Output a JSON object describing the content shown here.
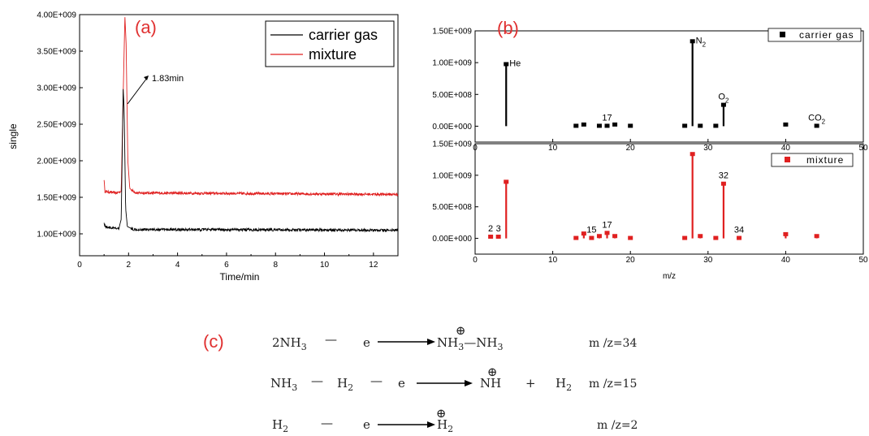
{
  "chart_data": [
    {
      "type": "line",
      "panel_label": "(a)",
      "xlabel": "Time/min",
      "ylabel": "single",
      "xlim": [
        0,
        13
      ],
      "ylim": [
        700000000,
        4000000000
      ],
      "x_ticks": [
        "0",
        "2",
        "4",
        "6",
        "8",
        "10",
        "12"
      ],
      "y_ticks": [
        "1.00E+009",
        "1.50E+009",
        "2.00E+009",
        "2.50E+009",
        "3.00E+009",
        "3.50E+009",
        "4.00E+009"
      ],
      "legend": "top-right",
      "series": [
        {
          "name": "carrier gas",
          "color": "#000000",
          "baseline": 1050000000,
          "points": [
            [
              1.0,
              1150000000.0
            ],
            [
              1.05,
              1100000000.0
            ],
            [
              1.3,
              1080000000.0
            ],
            [
              1.6,
              1070000000.0
            ],
            [
              1.7,
              1200000000.0
            ],
            [
              1.78,
              2980000000.0
            ],
            [
              1.82,
              2700000000.0
            ],
            [
              1.88,
              1350000000.0
            ],
            [
              1.95,
              1100000000.0
            ],
            [
              2.2,
              1060000000.0
            ],
            [
              13.0,
              1050000000.0
            ]
          ]
        },
        {
          "name": "mixture",
          "color": "#e02020",
          "baseline": 1540000000,
          "points": [
            [
              1.0,
              1750000000.0
            ],
            [
              1.03,
              1580000000.0
            ],
            [
              1.5,
              1560000000.0
            ],
            [
              1.7,
              1580000000.0
            ],
            [
              1.78,
              2900000000.0
            ],
            [
              1.85,
              3980000000.0
            ],
            [
              1.9,
              3600000000.0
            ],
            [
              1.97,
              2000000000.0
            ],
            [
              2.05,
              1620000000.0
            ],
            [
              2.3,
              1560000000.0
            ],
            [
              13.0,
              1540000000.0
            ]
          ]
        }
      ],
      "annotation": {
        "text": "1.83min",
        "x": 1.83
      }
    },
    {
      "type": "bar",
      "panel_label": "(b)",
      "xlim": [
        0,
        50
      ],
      "ylim": [
        -250000000,
        1500000000
      ],
      "x_ticks": [
        "0",
        "10",
        "20",
        "30",
        "40",
        "50"
      ],
      "y_ticks": [
        "0.00E+000",
        "5.00E+008",
        "1.00E+009",
        "1.50E+009"
      ],
      "legend": "top-right",
      "series": [
        {
          "name": "carrier gas",
          "color": "#000000",
          "x": [
            4,
            13,
            14,
            16,
            17,
            18,
            20,
            27,
            28,
            29,
            31,
            32,
            40,
            44
          ],
          "values": [
            970000000,
            0,
            20000000,
            0,
            0,
            20000000,
            0,
            0,
            1330000000,
            0,
            0,
            330000000,
            20000000,
            0
          ]
        }
      ],
      "labels": [
        {
          "text": "He",
          "x": 4
        },
        {
          "text": "17",
          "x": 17
        },
        {
          "text": "N",
          "sub": "2",
          "x": 28
        },
        {
          "text": "O",
          "sub": "2",
          "x": 32
        },
        {
          "text": "CO",
          "sub": "2",
          "x": 44
        }
      ]
    },
    {
      "type": "bar",
      "xlabel": "m/z",
      "xlim": [
        0,
        50
      ],
      "ylim": [
        -250000000,
        1500000000
      ],
      "x_ticks": [
        "0",
        "10",
        "20",
        "30",
        "40",
        "50"
      ],
      "y_ticks": [
        "0.00E+000",
        "5.00E+008",
        "1.00E+009",
        "1.50E+009"
      ],
      "legend": "top-right",
      "series": [
        {
          "name": "mixture",
          "color": "#e02020",
          "x": [
            2,
            3,
            4,
            13,
            14,
            15,
            16,
            17,
            18,
            20,
            27,
            28,
            29,
            31,
            32,
            34,
            40,
            44
          ],
          "values": [
            20000000,
            20000000,
            890000000,
            0,
            70000000,
            0,
            30000000,
            80000000,
            30000000,
            0,
            0,
            1330000000,
            30000000,
            0,
            860000000,
            0,
            60000000,
            30000000
          ]
        }
      ],
      "labels": [
        {
          "text": "2",
          "x": 2
        },
        {
          "text": "3",
          "x": 3
        },
        {
          "text": "15",
          "x": 15
        },
        {
          "text": "17",
          "x": 17
        },
        {
          "text": "32",
          "x": 32
        },
        {
          "text": "34",
          "x": 34
        }
      ]
    }
  ],
  "equations": {
    "label": "(c)",
    "rows": [
      {
        "reactant": "2NH",
        "reactant_sub": "3",
        "minus1": "—",
        "e": "e",
        "product_a": "NH",
        "product_a_sub": "3",
        "dash": "—",
        "product_b": "NH",
        "product_b_sub": "3",
        "result": "m /z=34"
      },
      {
        "r1": "NH",
        "r1_sub": "3",
        "m1": "—",
        "r2": "H",
        "r2_sub": "2",
        "m2": "—",
        "e": "e",
        "product": "NH",
        "plus": "+",
        "h2": "H",
        "h2_sub": "2",
        "result": "m /z=15"
      },
      {
        "reactant": "H",
        "reactant_sub": "2",
        "minus1": "—",
        "e": "e",
        "product": "H",
        "product_sub": "2",
        "result": "m /z=2"
      }
    ],
    "cation_symbol": "⊕"
  }
}
